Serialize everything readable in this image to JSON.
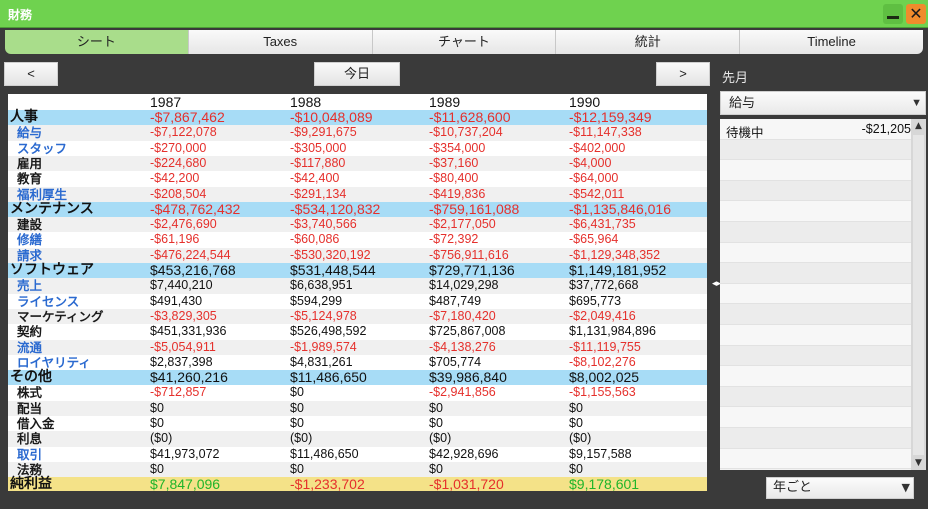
{
  "window": {
    "title": "財務",
    "close_glyph": "✕"
  },
  "tabs": [
    {
      "label": "シート",
      "active": true
    },
    {
      "label": "Taxes",
      "active": false
    },
    {
      "label": "チャート",
      "active": false
    },
    {
      "label": "統計",
      "active": false
    },
    {
      "label": "Timeline",
      "active": false
    }
  ],
  "nav": {
    "prev": "<",
    "today": "今日",
    "next": ">"
  },
  "years": [
    "1987",
    "1988",
    "1989",
    "1990"
  ],
  "rows": [
    {
      "label": "人事",
      "kind": "cat",
      "values": [
        "-$7,867,462",
        "-$10,048,089",
        "-$11,628,600",
        "-$12,159,349"
      ]
    },
    {
      "label": "給与",
      "kind": "sub",
      "values": [
        "-$7,122,078",
        "-$9,291,675",
        "-$10,737,204",
        "-$11,147,338"
      ]
    },
    {
      "label": "スタッフ",
      "kind": "sub",
      "values": [
        "-$270,000",
        "-$305,000",
        "-$354,000",
        "-$402,000"
      ]
    },
    {
      "label": "雇用",
      "kind": "subdark",
      "values": [
        "-$224,680",
        "-$117,880",
        "-$37,160",
        "-$4,000"
      ]
    },
    {
      "label": "教育",
      "kind": "subdark",
      "values": [
        "-$42,200",
        "-$42,400",
        "-$80,400",
        "-$64,000"
      ]
    },
    {
      "label": "福利厚生",
      "kind": "sub",
      "values": [
        "-$208,504",
        "-$291,134",
        "-$419,836",
        "-$542,011"
      ]
    },
    {
      "label": "メンテナンス",
      "kind": "cat",
      "values": [
        "-$478,762,432",
        "-$534,120,832",
        "-$759,161,088",
        "-$1,135,846,016"
      ]
    },
    {
      "label": "建設",
      "kind": "subdark",
      "values": [
        "-$2,476,690",
        "-$3,740,566",
        "-$2,177,050",
        "-$6,431,735"
      ]
    },
    {
      "label": "修繕",
      "kind": "sub",
      "values": [
        "-$61,196",
        "-$60,086",
        "-$72,392",
        "-$65,964"
      ]
    },
    {
      "label": "請求",
      "kind": "sub",
      "values": [
        "-$476,224,544",
        "-$530,320,192",
        "-$756,911,616",
        "-$1,129,348,352"
      ]
    },
    {
      "label": "ソフトウェア",
      "kind": "cat",
      "values": [
        "$453,216,768",
        "$531,448,544",
        "$729,771,136",
        "$1,149,181,952"
      ]
    },
    {
      "label": "売上",
      "kind": "sub",
      "values": [
        "$7,440,210",
        "$6,638,951",
        "$14,029,298",
        "$37,772,668"
      ]
    },
    {
      "label": "ライセンス",
      "kind": "sub",
      "values": [
        "$491,430",
        "$594,299",
        "$487,749",
        "$695,773"
      ]
    },
    {
      "label": "マーケティング",
      "kind": "subdark",
      "values": [
        "-$3,829,305",
        "-$5,124,978",
        "-$7,180,420",
        "-$2,049,416"
      ]
    },
    {
      "label": "契約",
      "kind": "subdark",
      "values": [
        "$451,331,936",
        "$526,498,592",
        "$725,867,008",
        "$1,131,984,896"
      ]
    },
    {
      "label": "流通",
      "kind": "sub",
      "values": [
        "-$5,054,911",
        "-$1,989,574",
        "-$4,138,276",
        "-$11,119,755"
      ]
    },
    {
      "label": "ロイヤリティ",
      "kind": "sub",
      "values": [
        "$2,837,398",
        "$4,831,261",
        "$705,774",
        "-$8,102,276"
      ]
    },
    {
      "label": "その他",
      "kind": "cat",
      "values": [
        "$41,260,216",
        "$11,486,650",
        "$39,986,840",
        "$8,002,025"
      ]
    },
    {
      "label": "株式",
      "kind": "subdark",
      "values": [
        "-$712,857",
        "$0",
        "-$2,941,856",
        "-$1,155,563"
      ]
    },
    {
      "label": "配当",
      "kind": "subdark",
      "values": [
        "$0",
        "$0",
        "$0",
        "$0"
      ]
    },
    {
      "label": "借入金",
      "kind": "subdark",
      "values": [
        "$0",
        "$0",
        "$0",
        "$0"
      ]
    },
    {
      "label": "利息",
      "kind": "subdark",
      "values": [
        "($0)",
        "($0)",
        "($0)",
        "($0)"
      ]
    },
    {
      "label": "取引",
      "kind": "sub",
      "values": [
        "$41,973,072",
        "$11,486,650",
        "$42,928,696",
        "$9,157,588"
      ]
    },
    {
      "label": "法務",
      "kind": "subdark",
      "values": [
        "$0",
        "$0",
        "$0",
        "$0"
      ]
    },
    {
      "label": "純利益",
      "kind": "net",
      "values": [
        "$7,847,096",
        "-$1,233,702",
        "-$1,031,720",
        "$9,178,601"
      ]
    }
  ],
  "sidebar": {
    "heading": "先月",
    "filter": {
      "selected": "給与"
    },
    "items": [
      {
        "name": "待機中",
        "value": "-$21,205"
      }
    ],
    "empty_rows": 16,
    "period": {
      "selected": "年ごと"
    }
  },
  "colors": {
    "title_bar": "#6fd24f",
    "tab_active": "#a9dd8b",
    "category_row": "#a7dcf6",
    "net_row": "#f4e288",
    "negative": "#e5302c",
    "positive_net": "#1fb52a",
    "link_label": "#2b6ad0"
  }
}
